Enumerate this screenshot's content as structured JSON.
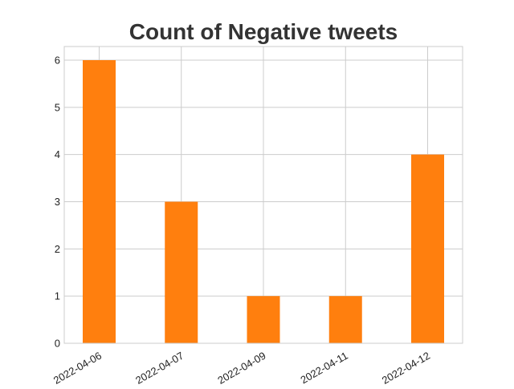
{
  "chart_data": {
    "type": "bar",
    "title": "Count of Negative tweets",
    "xlabel": "",
    "ylabel": "",
    "categories": [
      "2022-04-06",
      "2022-04-07",
      "2022-04-09",
      "2022-04-11",
      "2022-04-12"
    ],
    "values": [
      6,
      3,
      1,
      1,
      4
    ],
    "ylim": [
      0,
      6
    ],
    "yticks": [
      "0",
      "1",
      "2",
      "3",
      "4",
      "5",
      "6"
    ],
    "bar_color": "#ff7f0e",
    "grid": true,
    "legend": "none"
  }
}
